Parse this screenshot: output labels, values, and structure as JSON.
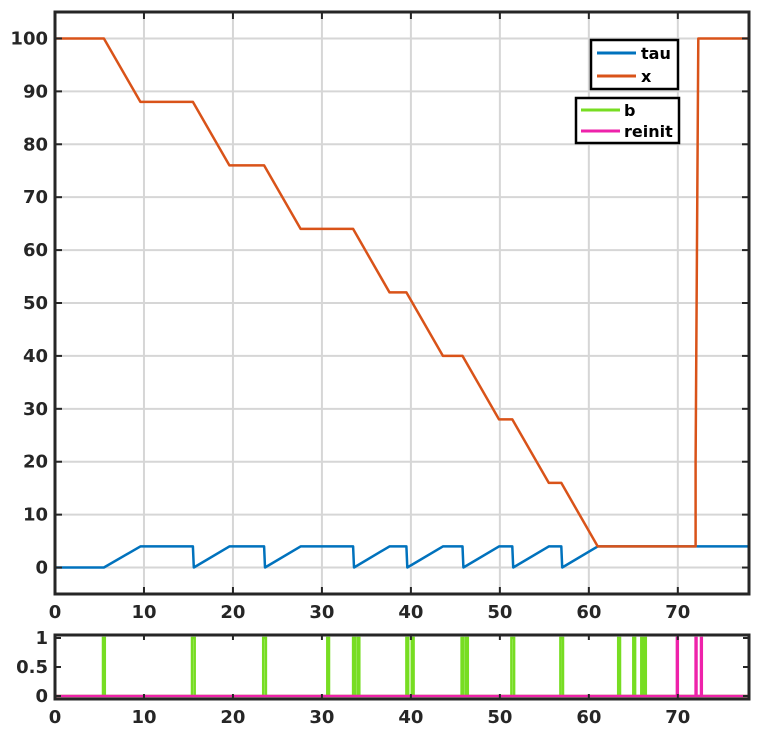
{
  "chart_data": [
    {
      "type": "line",
      "xlim": [
        0,
        78
      ],
      "ylim": [
        -5,
        105
      ],
      "x_ticks": [
        0,
        10,
        20,
        30,
        40,
        50,
        60,
        70
      ],
      "y_ticks": [
        0,
        10,
        20,
        30,
        40,
        50,
        60,
        70,
        80,
        90,
        100
      ],
      "x_tick_labels": [
        "0",
        "10",
        "20",
        "30",
        "40",
        "50",
        "60",
        "70"
      ],
      "y_tick_labels": [
        "0",
        "10",
        "20",
        "30",
        "40",
        "50",
        "60",
        "70",
        "80",
        "90",
        "100"
      ],
      "grid": true,
      "legend_placement": "top-right",
      "series": [
        {
          "name": "tau",
          "color": "#0072BD",
          "points": [
            [
              0,
              0
            ],
            [
              5.5,
              0
            ],
            [
              9.6,
              4
            ],
            [
              15.5,
              4
            ],
            [
              15.6,
              0
            ],
            [
              19.6,
              4
            ],
            [
              23.5,
              4
            ],
            [
              23.6,
              0
            ],
            [
              27.6,
              4
            ],
            [
              33.5,
              4
            ],
            [
              33.6,
              0
            ],
            [
              37.6,
              4
            ],
            [
              39.5,
              4
            ],
            [
              39.6,
              0
            ],
            [
              43.6,
              4
            ],
            [
              45.8,
              4
            ],
            [
              45.9,
              0
            ],
            [
              49.9,
              4
            ],
            [
              51.4,
              4
            ],
            [
              51.5,
              0
            ],
            [
              55.5,
              4
            ],
            [
              56.9,
              4
            ],
            [
              57.0,
              0
            ],
            [
              61.0,
              4
            ],
            [
              78,
              4
            ]
          ]
        },
        {
          "name": "x",
          "color": "#D95319",
          "points": [
            [
              0,
              100
            ],
            [
              5.5,
              100
            ],
            [
              9.6,
              88
            ],
            [
              15.5,
              88
            ],
            [
              19.6,
              76
            ],
            [
              23.5,
              76
            ],
            [
              27.6,
              64
            ],
            [
              33.5,
              64
            ],
            [
              37.6,
              52
            ],
            [
              39.5,
              52
            ],
            [
              43.6,
              40
            ],
            [
              45.8,
              40
            ],
            [
              49.9,
              28
            ],
            [
              51.4,
              28
            ],
            [
              55.5,
              16
            ],
            [
              56.9,
              16
            ],
            [
              61.0,
              4
            ],
            [
              72.0,
              4
            ],
            [
              72.0,
              20
            ],
            [
              72.3,
              100
            ],
            [
              78,
              100
            ]
          ]
        }
      ]
    },
    {
      "type": "line",
      "xlim": [
        0,
        78
      ],
      "ylim": [
        0,
        1
      ],
      "x_ticks": [
        0,
        10,
        20,
        30,
        40,
        50,
        60,
        70
      ],
      "y_ticks": [
        0,
        0.5,
        1
      ],
      "x_tick_labels": [
        "0",
        "10",
        "20",
        "30",
        "40",
        "50",
        "60",
        "70"
      ],
      "y_tick_labels": [
        "0",
        "0.5",
        "1"
      ],
      "legend_placement": "top-right",
      "series": [
        {
          "name": "b",
          "color": "#77DD22",
          "pulses": [
            [
              5.4,
              5.6
            ],
            [
              15.4,
              15.7
            ],
            [
              23.4,
              23.7
            ],
            [
              30.6,
              30.8
            ],
            [
              33.5,
              33.7
            ],
            [
              34.0,
              34.2
            ],
            [
              39.5,
              39.7
            ],
            [
              40.1,
              40.3
            ],
            [
              45.7,
              45.9
            ],
            [
              46.2,
              46.4
            ],
            [
              51.3,
              51.6
            ],
            [
              56.8,
              57.1
            ],
            [
              63.3,
              63.5
            ],
            [
              65.0,
              65.2
            ],
            [
              65.9,
              66.1
            ],
            [
              66.2,
              66.4
            ]
          ]
        },
        {
          "name": "reinit",
          "color": "#EE22AA",
          "pulses": [
            [
              69.9,
              70.0
            ],
            [
              72.0,
              72.1
            ],
            [
              72.6,
              72.7
            ]
          ]
        }
      ]
    }
  ]
}
